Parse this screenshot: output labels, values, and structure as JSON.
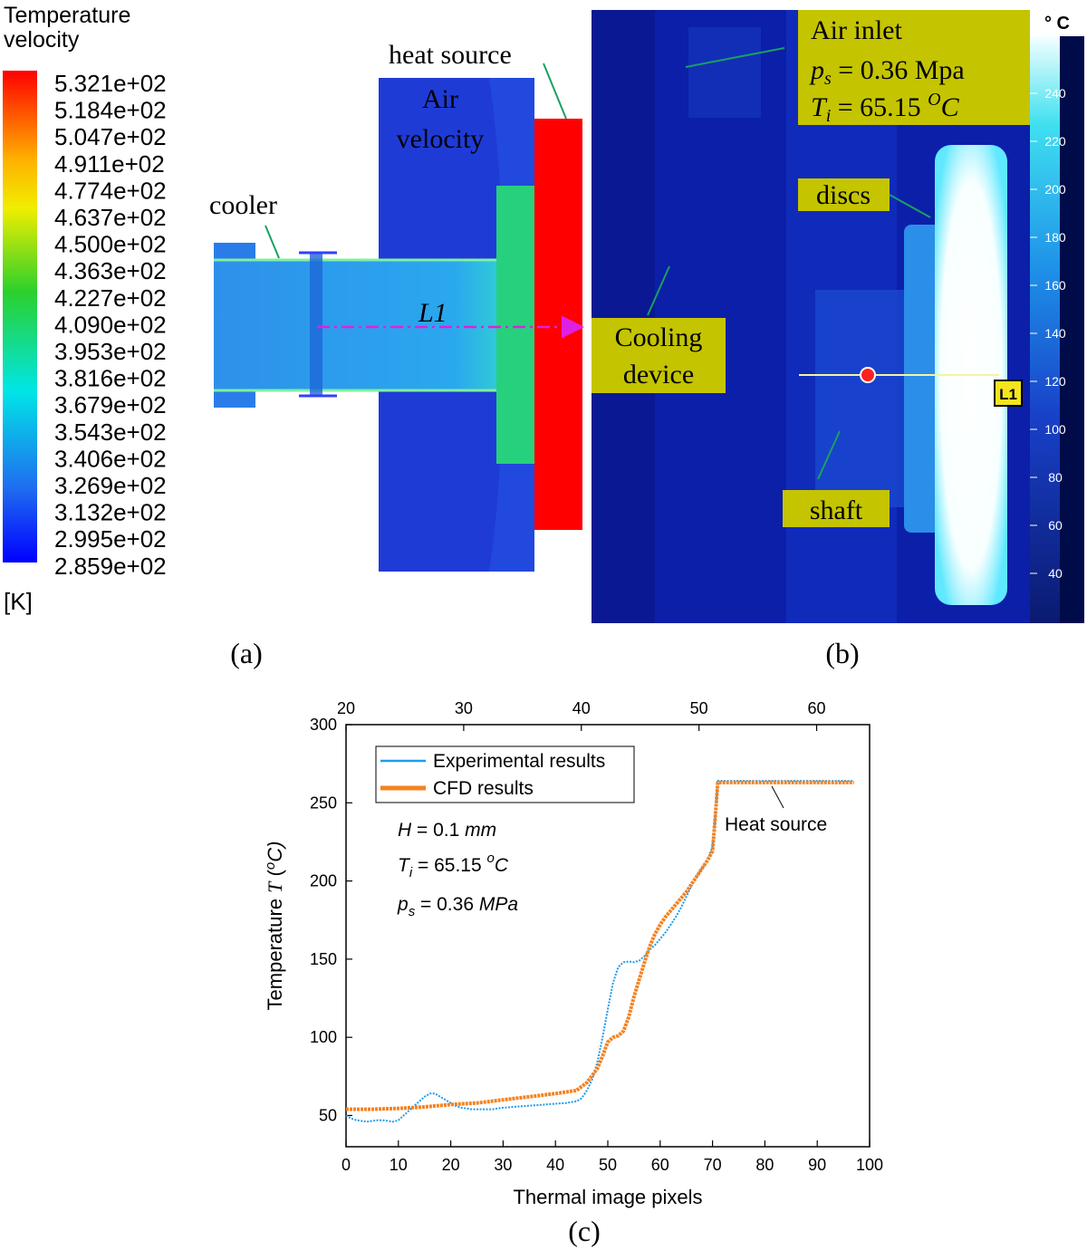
{
  "panel_a": {
    "legend_title_1": "Temperature",
    "legend_title_2": "velocity",
    "legend_values": [
      "5.321e+02",
      "5.184e+02",
      "5.047e+02",
      "4.911e+02",
      "4.774e+02",
      "4.637e+02",
      "4.500e+02",
      "4.363e+02",
      "4.227e+02",
      "4.090e+02",
      "3.953e+02",
      "3.816e+02",
      "3.679e+02",
      "3.543e+02",
      "3.406e+02",
      "3.269e+02",
      "3.132e+02",
      "2.995e+02",
      "2.859e+02"
    ],
    "legend_unit": "[K]",
    "label_cooler": "cooler",
    "label_heat_source": "heat source",
    "label_air_1": "Air",
    "label_air_2": "velocity",
    "label_line": "L1",
    "caption": "(a)",
    "colors": {
      "hot": "#ff0000",
      "flow": "#1f3bd6",
      "shaft": "#2a8ce8",
      "disc": "#27d07d"
    }
  },
  "panel_b": {
    "label_air_inlet": "Air inlet",
    "label_ps_sym": "p",
    "label_ps_sub": "s",
    "label_ps_val": " = 0.36 Mpa",
    "label_ti_sym": "T",
    "label_ti_sub": "i",
    "label_ti_val": " = 65.15 ",
    "label_ti_sup": "O",
    "label_ti_unit": "C",
    "label_discs": "discs",
    "label_cooling_1": "Cooling",
    "label_cooling_2": "device",
    "label_shaft": "shaft",
    "label_marker": "L1",
    "scale_unit": "° C",
    "scale_ticks": [
      "240",
      "220",
      "200",
      "180",
      "160",
      "140",
      "120",
      "100",
      "80",
      "60",
      "40"
    ],
    "caption": "(b)"
  },
  "chart_data": {
    "type": "line",
    "xlabel": "Thermal image pixels",
    "ylabel_prefix": "Temperature ",
    "ylabel_sym": "T",
    "ylabel_unit_open": " (",
    "ylabel_unit_sup": "o",
    "ylabel_unit": "C)",
    "xlim": [
      0,
      100
    ],
    "ylim": [
      30,
      300
    ],
    "x_ticks": [
      0,
      10,
      20,
      30,
      40,
      50,
      60,
      70,
      80,
      90,
      100
    ],
    "y_ticks": [
      50,
      100,
      150,
      200,
      250,
      300
    ],
    "top_axis_lim": [
      20,
      64.5
    ],
    "top_axis_ticks": [
      20,
      30,
      40,
      50,
      60
    ],
    "legend": [
      "Experimental results",
      "CFD results"
    ],
    "legend_position": "top-left",
    "grid": false,
    "annotation_h": "H = 0.1 mm",
    "annotation_ti": "Ti = 65.15 oC",
    "annotation_ps": "ps = 0.36 MPa",
    "annotation_heat": "Heat source",
    "caption": "(c)",
    "series": [
      {
        "name": "Experimental results",
        "color": "#1f9bea",
        "x": [
          0,
          1,
          2,
          3,
          4,
          5,
          6,
          7,
          8,
          9,
          10,
          11,
          12,
          13,
          14,
          15,
          16,
          17,
          18,
          19,
          20,
          21,
          22,
          23,
          24,
          25,
          26,
          27,
          28,
          29,
          30,
          32,
          34,
          36,
          38,
          40,
          42,
          44,
          45,
          46,
          47,
          48,
          49,
          50,
          51,
          52,
          53,
          54,
          55,
          56,
          57,
          58,
          59,
          60,
          61,
          62,
          63,
          64,
          65,
          66,
          67,
          68,
          69,
          70,
          70.5,
          71,
          72,
          75,
          80,
          85,
          90,
          95,
          97
        ],
        "y": [
          50,
          48,
          47,
          46.5,
          46,
          46.5,
          47,
          47,
          46.5,
          46,
          47,
          50,
          53,
          56,
          59,
          62,
          64,
          64,
          62,
          60,
          58,
          56,
          55,
          54.5,
          54,
          54,
          54,
          54,
          54,
          54.5,
          55,
          55.5,
          56,
          56.5,
          57,
          57.5,
          58,
          59,
          61,
          66,
          73,
          84,
          100,
          118,
          135,
          145,
          148,
          148.5,
          148,
          149,
          152,
          156,
          159,
          163,
          167,
          172,
          177,
          183,
          190,
          197,
          203,
          208,
          213,
          222,
          240,
          264,
          264,
          264,
          264,
          264,
          264,
          264,
          264
        ]
      },
      {
        "name": "CFD results",
        "color": "#f58220",
        "x": [
          0,
          5,
          10,
          15,
          20,
          25,
          30,
          35,
          40,
          44,
          46,
          48,
          49,
          50,
          51,
          52,
          53,
          54,
          55,
          56,
          57,
          58,
          59,
          60,
          61,
          62,
          63,
          64,
          65,
          66,
          67,
          68,
          69,
          70,
          70.5,
          71,
          72,
          75,
          80,
          85,
          90,
          95,
          97
        ],
        "y": [
          54,
          54,
          54.5,
          55.5,
          57,
          58,
          60,
          62,
          64,
          66,
          71,
          80,
          88,
          97,
          100,
          101,
          104,
          113,
          126,
          137,
          148,
          158,
          166,
          172,
          177,
          181,
          185,
          189,
          193,
          198,
          203,
          208,
          213,
          219,
          240,
          263,
          263,
          263,
          263,
          263,
          263,
          263,
          263
        ]
      }
    ]
  }
}
